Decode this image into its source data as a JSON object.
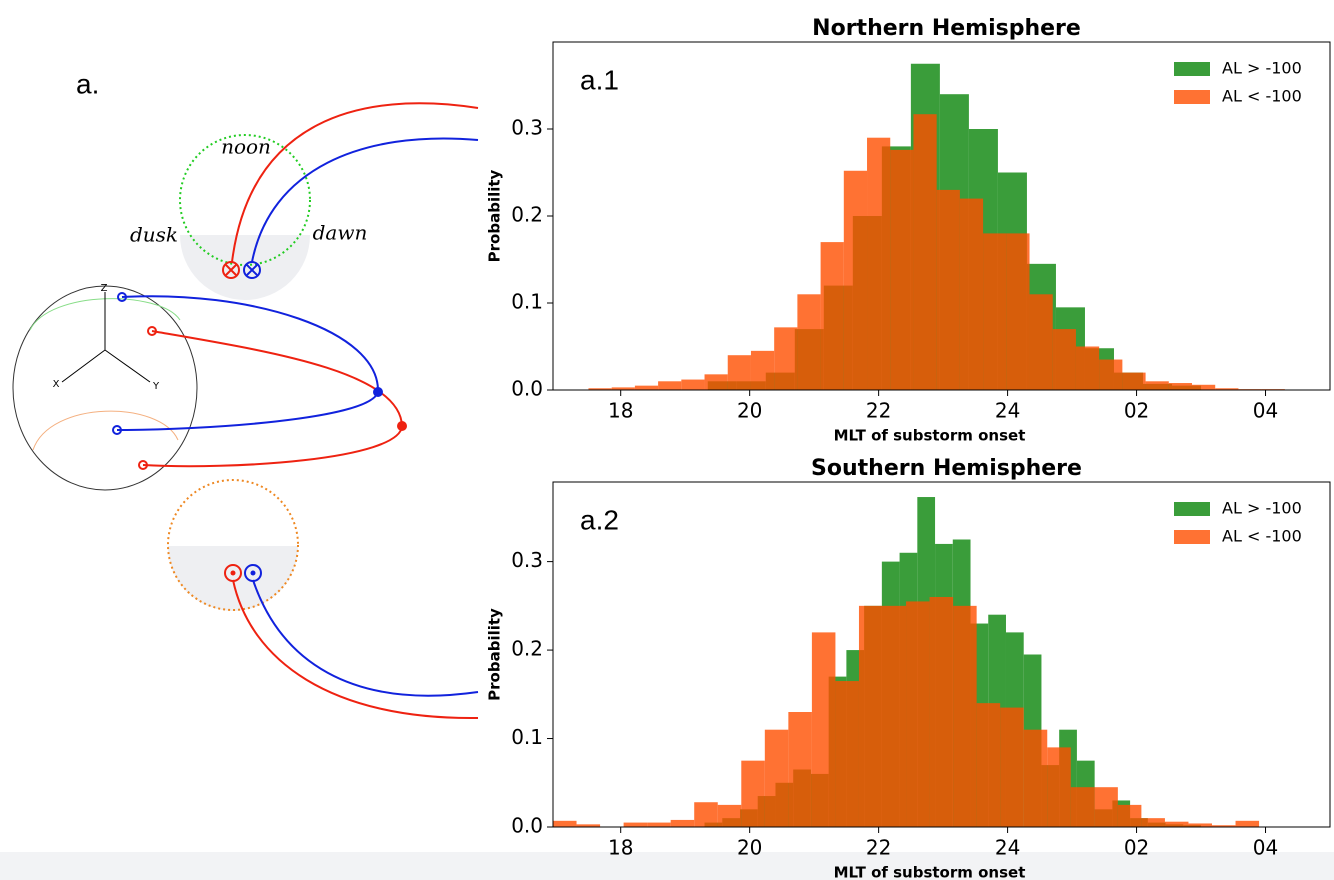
{
  "diagram": {
    "label": "a.",
    "noon": "noon",
    "dusk": "dusk",
    "dawn": "dawn",
    "axes": [
      "Z",
      "X",
      "Y"
    ]
  },
  "chart_data": [
    {
      "type": "histogram",
      "title": "Northern Hemisphere",
      "panel": "a.1",
      "xlabel": "MLT of substorm onset",
      "ylabel": "Probability",
      "xlim": [
        16.95,
        29.0
      ],
      "ylim": [
        0,
        0.4
      ],
      "xticks": [
        18,
        20,
        22,
        24,
        {
          "value": 26,
          "label": "02"
        },
        {
          "value": 28,
          "label": "04"
        }
      ],
      "yticks": [
        {
          "value": 0,
          "label": "0.0"
        },
        0.1,
        0.2,
        0.3
      ],
      "legend": "upper right",
      "series": [
        {
          "name": "AL > -100",
          "color": "#3a9d3a",
          "bins": [
            19.35,
            19.8,
            20.25,
            20.7,
            21.15,
            21.6,
            22.05,
            22.5,
            22.95,
            23.4,
            23.85,
            24.3,
            24.75,
            25.2,
            25.65,
            26.1,
            26.55,
            27.0
          ],
          "values": [
            0.01,
            0.01,
            0.02,
            0.07,
            0.12,
            0.2,
            0.28,
            0.375,
            0.34,
            0.3,
            0.25,
            0.145,
            0.095,
            0.048,
            0.02,
            0.007,
            0.005
          ]
        },
        {
          "name": "AL < -100",
          "color": "#ff4f00",
          "bins": [
            17.5,
            17.86,
            18.22,
            18.58,
            18.94,
            19.3,
            19.66,
            20.02,
            20.38,
            20.74,
            21.1,
            21.46,
            21.82,
            22.18,
            22.54,
            22.9,
            23.26,
            23.62,
            23.98,
            24.34,
            24.7,
            25.06,
            25.42,
            25.78,
            26.14,
            26.5,
            26.86,
            27.22,
            27.58,
            27.94,
            28.3
          ],
          "values": [
            0.002,
            0.003,
            0.005,
            0.01,
            0.012,
            0.018,
            0.04,
            0.045,
            0.072,
            0.11,
            0.17,
            0.252,
            0.29,
            0.276,
            0.317,
            0.23,
            0.22,
            0.18,
            0.18,
            0.11,
            0.07,
            0.05,
            0.035,
            0.02,
            0.01,
            0.008,
            0.006,
            0.002,
            0.001,
            0.001
          ]
        }
      ]
    },
    {
      "type": "histogram",
      "title": "Southern Hemisphere",
      "panel": "a.2",
      "xlabel": "MLT of substorm onset",
      "ylabel": "Probability",
      "xlim": [
        16.95,
        29.0
      ],
      "ylim": [
        0,
        0.39
      ],
      "xticks": [
        18,
        20,
        22,
        24,
        {
          "value": 26,
          "label": "02"
        },
        {
          "value": 28,
          "label": "04"
        }
      ],
      "yticks": [
        {
          "value": 0,
          "label": "0.0"
        },
        0.1,
        0.2,
        0.3
      ],
      "legend": "upper right",
      "series": [
        {
          "name": "AL > -100",
          "color": "#3a9d3a",
          "bins": [
            19.3,
            19.575,
            19.85,
            20.125,
            20.4,
            20.675,
            20.95,
            21.225,
            21.5,
            21.775,
            22.05,
            22.325,
            22.6,
            22.875,
            23.15,
            23.425,
            23.7,
            23.975,
            24.25,
            24.525,
            24.8,
            25.075,
            25.35,
            25.625,
            25.9,
            26.175,
            26.45,
            26.725,
            27.0
          ],
          "values": [
            0.005,
            0.01,
            0.02,
            0.035,
            0.05,
            0.065,
            0.06,
            0.17,
            0.2,
            0.25,
            0.3,
            0.31,
            0.373,
            0.32,
            0.325,
            0.23,
            0.24,
            0.22,
            0.195,
            0.07,
            0.11,
            0.075,
            0.02,
            0.03,
            0.01,
            0.005,
            0.003,
            0.002
          ]
        },
        {
          "name": "AL < -100",
          "color": "#ff4f00",
          "bins": [
            16.95,
            17.315,
            17.68,
            18.045,
            18.41,
            18.775,
            19.14,
            19.505,
            19.87,
            20.235,
            20.6,
            20.965,
            21.33,
            21.695,
            22.06,
            22.425,
            22.79,
            23.155,
            23.52,
            23.885,
            24.25,
            24.615,
            24.98,
            25.345,
            25.71,
            26.075,
            26.44,
            26.805,
            27.17,
            27.535,
            27.9
          ],
          "values": [
            0.007,
            0.003,
            0,
            0.005,
            0.005,
            0.008,
            0.028,
            0.025,
            0.075,
            0.11,
            0.13,
            0.22,
            0.165,
            0.25,
            0.25,
            0.255,
            0.26,
            0.25,
            0.14,
            0.135,
            0.11,
            0.09,
            0.045,
            0.045,
            0.025,
            0.01,
            0.006,
            0.004,
            0.002,
            0.007
          ]
        }
      ]
    }
  ]
}
